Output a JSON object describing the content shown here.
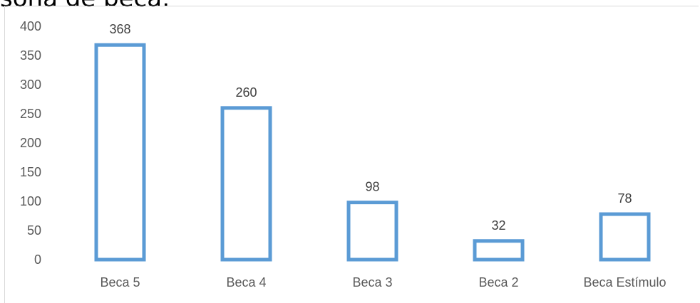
{
  "header": {
    "title_fragment": "sona de beca:"
  },
  "chart_data": {
    "type": "bar",
    "categories": [
      "Beca 5",
      "Beca 4",
      "Beca 3",
      "Beca 2",
      "Beca Estímulo"
    ],
    "values": [
      368,
      260,
      98,
      32,
      78
    ],
    "data_labels": [
      "368",
      "260",
      "98",
      "32",
      "78"
    ],
    "ylim": [
      0,
      400
    ],
    "yticks": [
      "0",
      "50",
      "100",
      "150",
      "200",
      "250",
      "300",
      "350",
      "400"
    ],
    "grid": false,
    "legend": "none",
    "bar_style": "outline",
    "bar_color": "#5b9bd5"
  }
}
